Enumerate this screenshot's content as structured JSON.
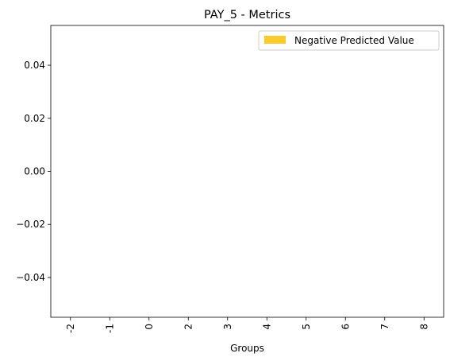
{
  "chart_data": {
    "type": "bar",
    "title": "PAY_5 - Metrics",
    "xlabel": "Groups",
    "ylabel": "",
    "categories": [
      "-2",
      "-1",
      "0",
      "2",
      "3",
      "4",
      "5",
      "6",
      "7",
      "8"
    ],
    "series": [
      {
        "name": "Negative Predicted Value",
        "color": "#fcca2a",
        "values": [
          0,
          0,
          0,
          0,
          0,
          0,
          0,
          0,
          0,
          0
        ]
      }
    ],
    "ylim": [
      -0.055,
      0.055
    ],
    "yticks": [
      0.04,
      0.02,
      0.0,
      -0.02,
      -0.04
    ],
    "ytick_labels": [
      "0.04",
      "0.02",
      "0.00",
      "−0.02",
      "−0.04"
    ],
    "grid": false,
    "legend_position": "top-right"
  }
}
